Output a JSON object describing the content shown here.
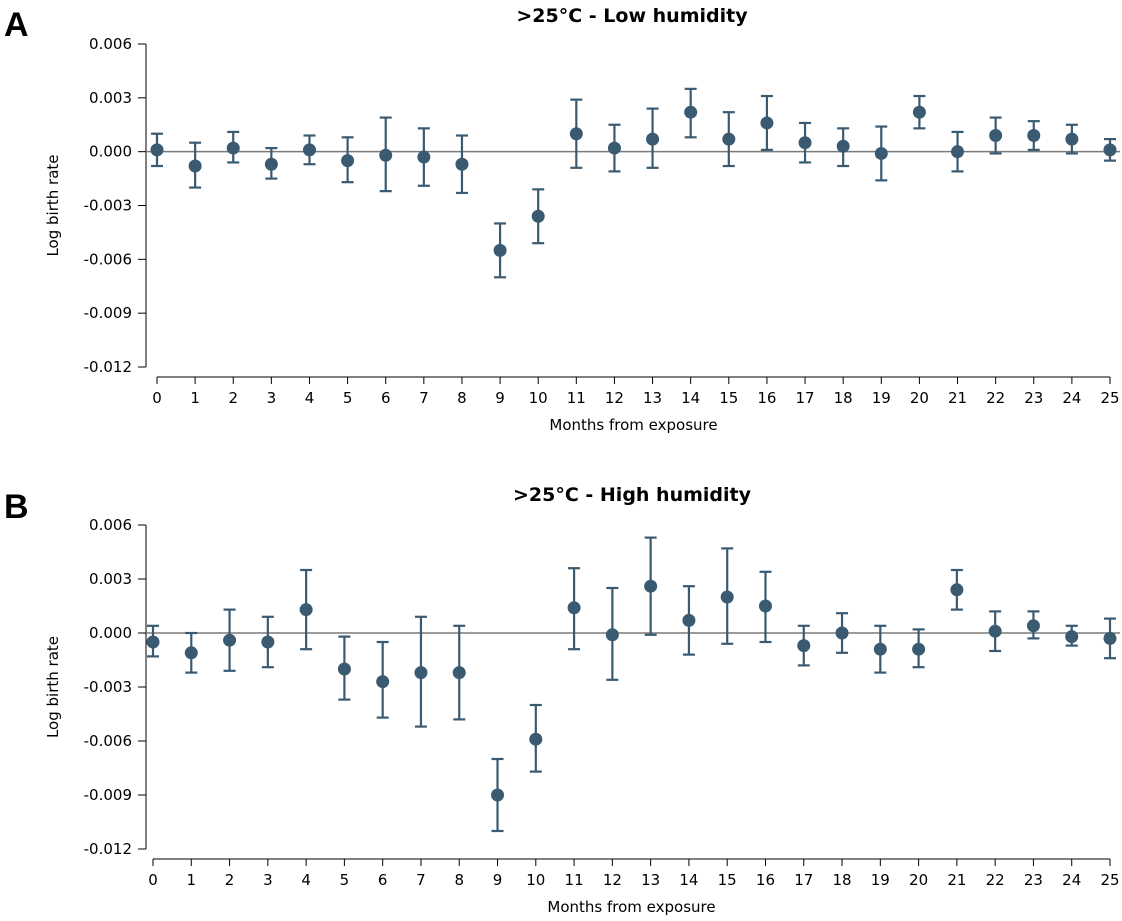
{
  "chart_data": [
    {
      "type": "scatter",
      "panel": "A",
      "title": ">25°C - Low humidity",
      "xlabel": "Months from exposure",
      "ylabel": "Log birth rate",
      "xlim": [
        0,
        25
      ],
      "ylim": [
        -0.012,
        0.006
      ],
      "yticks": [
        0.006,
        0.003,
        0.0,
        -0.003,
        -0.006,
        -0.009,
        -0.012
      ],
      "ytick_labels": [
        "0.006",
        "0.003",
        "0.000",
        "-0.003",
        "-0.006",
        "-0.009",
        "-0.012"
      ],
      "xticks": [
        "0",
        "1",
        "2",
        "3",
        "4",
        "5",
        "6",
        "7",
        "8",
        "9",
        "10",
        "11",
        "12",
        "13",
        "14",
        "15",
        "16",
        "17",
        "18",
        "19",
        "20",
        "21",
        "22",
        "23",
        "24",
        "25"
      ],
      "reference_line": 0,
      "color": "#3a5a72",
      "series": [
        {
          "x": [
            0,
            1,
            2,
            3,
            4,
            5,
            6,
            7,
            8,
            9,
            10,
            11,
            12,
            13,
            14,
            15,
            16,
            17,
            18,
            19,
            20,
            21,
            22,
            23,
            24,
            25
          ],
          "y": [
            0.0001,
            -0.0008,
            0.0002,
            -0.0007,
            0.0001,
            -0.0005,
            -0.0002,
            -0.0003,
            -0.0007,
            -0.0055,
            -0.0036,
            0.001,
            0.0002,
            0.0007,
            0.0022,
            0.0007,
            0.0016,
            0.0005,
            0.0003,
            -0.0001,
            0.0022,
            0.0,
            0.0009,
            0.0009,
            0.0007,
            0.0001
          ],
          "lower": [
            -0.0008,
            -0.002,
            -0.0006,
            -0.0015,
            -0.0007,
            -0.0017,
            -0.0022,
            -0.0019,
            -0.0023,
            -0.007,
            -0.0051,
            -0.0009,
            -0.0011,
            -0.0009,
            0.0008,
            -0.0008,
            0.0001,
            -0.0006,
            -0.0008,
            -0.0016,
            0.0013,
            -0.0011,
            -0.0001,
            0.0001,
            -0.0001,
            -0.0005
          ],
          "upper": [
            0.001,
            0.0005,
            0.0011,
            0.0002,
            0.0009,
            0.0008,
            0.0019,
            0.0013,
            0.0009,
            -0.004,
            -0.0021,
            0.0029,
            0.0015,
            0.0024,
            0.0035,
            0.0022,
            0.0031,
            0.0016,
            0.0013,
            0.0014,
            0.0031,
            0.0011,
            0.0019,
            0.0017,
            0.0015,
            0.0007
          ]
        }
      ]
    },
    {
      "type": "scatter",
      "panel": "B",
      "title": ">25°C - High humidity",
      "xlabel": "Months from exposure",
      "ylabel": "Log birth rate",
      "xlim": [
        0,
        25
      ],
      "ylim": [
        -0.012,
        0.006
      ],
      "yticks": [
        0.006,
        0.003,
        0.0,
        -0.003,
        -0.006,
        -0.009,
        -0.012
      ],
      "ytick_labels": [
        "0.006",
        "0.003",
        "0.000",
        "-0.003",
        "-0.006",
        "-0.009",
        "-0.012"
      ],
      "xticks": [
        "0",
        "1",
        "2",
        "3",
        "4",
        "5",
        "6",
        "7",
        "8",
        "9",
        "10",
        "11",
        "12",
        "13",
        "14",
        "15",
        "16",
        "17",
        "18",
        "19",
        "20",
        "21",
        "22",
        "23",
        "24",
        "25"
      ],
      "reference_line": 0,
      "color": "#3a5a72",
      "series": [
        {
          "x": [
            0,
            1,
            2,
            3,
            4,
            5,
            6,
            7,
            8,
            9,
            10,
            11,
            12,
            13,
            14,
            15,
            16,
            17,
            18,
            19,
            20,
            21,
            22,
            23,
            24,
            25
          ],
          "y": [
            -0.0005,
            -0.0011,
            -0.0004,
            -0.0005,
            0.0013,
            -0.002,
            -0.0027,
            -0.0022,
            -0.0022,
            -0.009,
            -0.0059,
            0.0014,
            -0.0001,
            0.0026,
            0.0007,
            0.002,
            0.0015,
            -0.0007,
            0.0,
            -0.0009,
            -0.0009,
            0.0024,
            0.0001,
            0.0004,
            -0.0002,
            -0.0003
          ],
          "lower": [
            -0.0013,
            -0.0022,
            -0.0021,
            -0.0019,
            -0.0009,
            -0.0037,
            -0.0047,
            -0.0052,
            -0.0048,
            -0.011,
            -0.0077,
            -0.0009,
            -0.0026,
            -0.0001,
            -0.0012,
            -0.0006,
            -0.0005,
            -0.0018,
            -0.0011,
            -0.0022,
            -0.0019,
            0.0013,
            -0.001,
            -0.0003,
            -0.0007,
            -0.0014
          ],
          "upper": [
            0.0004,
            0.0,
            0.0013,
            0.0009,
            0.0035,
            -0.0002,
            -0.0005,
            0.0009,
            0.0004,
            -0.007,
            -0.004,
            0.0036,
            0.0025,
            0.0053,
            0.0026,
            0.0047,
            0.0034,
            0.0004,
            0.0011,
            0.0004,
            0.0002,
            0.0035,
            0.0012,
            0.0012,
            0.0004,
            0.0008
          ]
        }
      ]
    }
  ]
}
